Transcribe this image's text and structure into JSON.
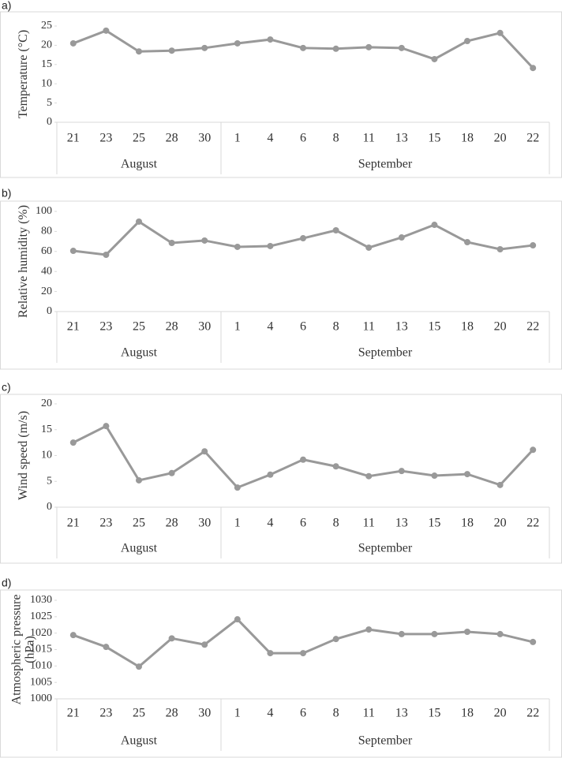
{
  "chart_data": [
    {
      "type": "line",
      "panel": "a)",
      "ylabel": [
        "Temperature (°C)"
      ],
      "color": "#999999",
      "groups": [
        {
          "label": "August",
          "categories": [
            "21",
            "23",
            "25",
            "28",
            "30"
          ]
        },
        {
          "label": "September",
          "categories": [
            "1",
            "4",
            "6",
            "8",
            "11",
            "13",
            "15",
            "18",
            "20",
            "22"
          ]
        }
      ],
      "values": [
        20.5,
        23.8,
        18.4,
        18.6,
        19.3,
        20.5,
        21.5,
        19.3,
        19.1,
        19.5,
        19.3,
        16.4,
        21.1,
        23.2,
        14.1
      ],
      "ylim": [
        0,
        25
      ],
      "yticks": [
        0,
        5,
        10,
        15,
        20,
        25
      ]
    },
    {
      "type": "line",
      "panel": "b)",
      "ylabel": [
        "Relative humidity (%)"
      ],
      "color": "#999999",
      "groups": [
        {
          "label": "August",
          "categories": [
            "21",
            "23",
            "25",
            "28",
            "30"
          ]
        },
        {
          "label": "September",
          "categories": [
            "1",
            "4",
            "6",
            "8",
            "11",
            "13",
            "15",
            "18",
            "20",
            "22"
          ]
        }
      ],
      "values": [
        60.6,
        56.7,
        89.8,
        68.5,
        70.9,
        64.6,
        65.4,
        73.2,
        81.1,
        63.8,
        74,
        86.6,
        69.3,
        62.2,
        66.1
      ],
      "ylim": [
        0,
        100
      ],
      "yticks": [
        0,
        20,
        40,
        60,
        80,
        100
      ]
    },
    {
      "type": "line",
      "panel": "c)",
      "ylabel": [
        "Wind speed (m/s)"
      ],
      "color": "#999999",
      "groups": [
        {
          "label": "August",
          "categories": [
            "21",
            "23",
            "25",
            "28",
            "30"
          ]
        },
        {
          "label": "September",
          "categories": [
            "1",
            "4",
            "6",
            "8",
            "11",
            "13",
            "15",
            "18",
            "20",
            "22"
          ]
        }
      ],
      "values": [
        12.5,
        15.7,
        5.2,
        6.6,
        10.8,
        3.8,
        6.3,
        9.2,
        7.9,
        6,
        7,
        6.1,
        6.4,
        4.3,
        11.1
      ],
      "ylim": [
        0,
        20
      ],
      "yticks": [
        0,
        5,
        10,
        15,
        20
      ]
    },
    {
      "type": "line",
      "panel": "d)",
      "ylabel": [
        "Atmospheric pressure",
        "(hPa)"
      ],
      "color": "#999999",
      "groups": [
        {
          "label": "August",
          "categories": [
            "21",
            "23",
            "25",
            "28",
            "30"
          ]
        },
        {
          "label": "September",
          "categories": [
            "1",
            "4",
            "6",
            "8",
            "11",
            "13",
            "15",
            "18",
            "20",
            "22"
          ]
        }
      ],
      "values": [
        1019.4,
        1015.8,
        1009.8,
        1018.4,
        1016.5,
        1024.2,
        1013.9,
        1013.9,
        1018.2,
        1021.1,
        1019.7,
        1019.7,
        1020.4,
        1019.7,
        1017.3
      ],
      "ylim": [
        1000,
        1030
      ],
      "yticks": [
        1000,
        1005,
        1010,
        1015,
        1020,
        1025,
        1030
      ]
    }
  ]
}
